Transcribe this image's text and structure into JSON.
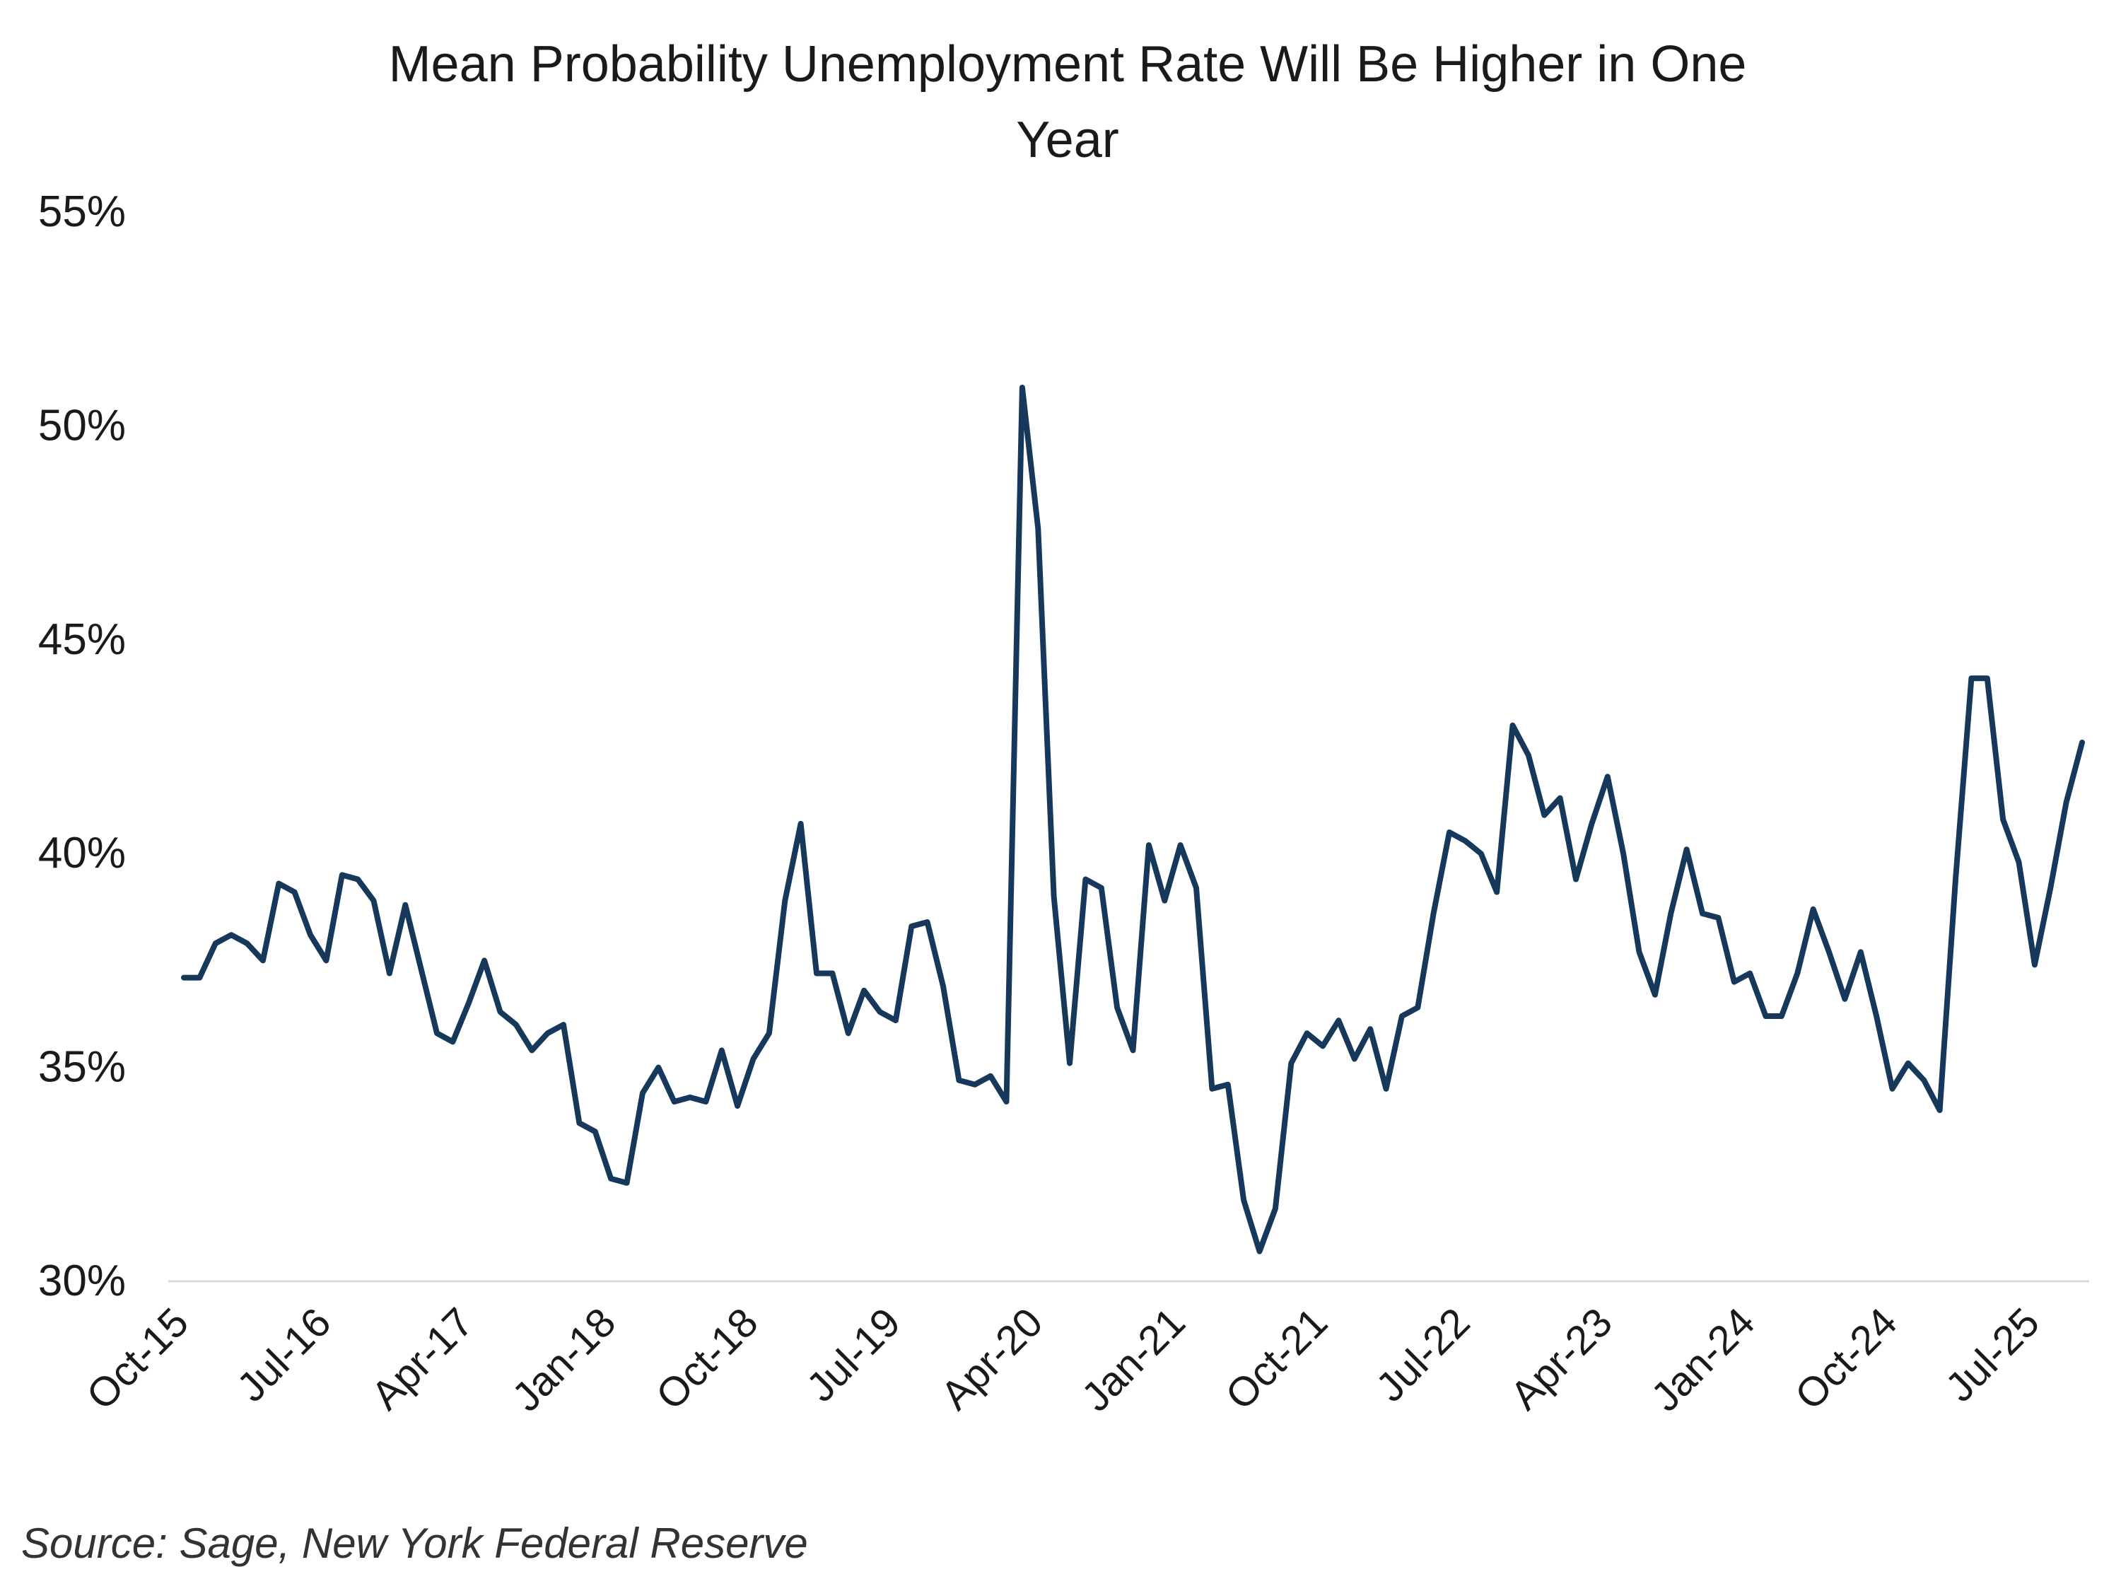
{
  "chart_data": {
    "type": "line",
    "title_line1": "Mean Probability Unemployment Rate Will Be Higher in One",
    "title_line2": "Year",
    "xlabel": "",
    "ylabel": "",
    "ylim": [
      30,
      55
    ],
    "y_ticks": [
      {
        "value": 55,
        "label": "55%"
      },
      {
        "value": 50,
        "label": "50%"
      },
      {
        "value": 45,
        "label": "45%"
      },
      {
        "value": 40,
        "label": "40%"
      },
      {
        "value": 35,
        "label": "35%"
      },
      {
        "value": 30,
        "label": "30%"
      }
    ],
    "x_ticks": [
      {
        "index": 0,
        "label": "Oct-15"
      },
      {
        "index": 9,
        "label": "Jul-16"
      },
      {
        "index": 18,
        "label": "Apr-17"
      },
      {
        "index": 27,
        "label": "Jan-18"
      },
      {
        "index": 36,
        "label": "Oct-18"
      },
      {
        "index": 45,
        "label": "Jul-19"
      },
      {
        "index": 54,
        "label": "Apr-20"
      },
      {
        "index": 63,
        "label": "Jan-21"
      },
      {
        "index": 72,
        "label": "Oct-21"
      },
      {
        "index": 81,
        "label": "Jul-22"
      },
      {
        "index": 90,
        "label": "Apr-23"
      },
      {
        "index": 99,
        "label": "Jan-24"
      },
      {
        "index": 108,
        "label": "Oct-24"
      },
      {
        "index": 117,
        "label": "Jul-25"
      }
    ],
    "series": [
      {
        "name": "Mean Probability",
        "color": "#16385a",
        "start": "Oct-15",
        "values": [
          37.1,
          37.1,
          37.9,
          38.1,
          37.9,
          37.5,
          39.3,
          39.1,
          38.1,
          37.5,
          39.5,
          39.4,
          38.9,
          37.2,
          38.8,
          37.3,
          35.8,
          35.6,
          36.5,
          37.5,
          36.3,
          36.0,
          35.4,
          35.8,
          36.0,
          33.7,
          33.5,
          32.4,
          32.3,
          34.4,
          35.0,
          34.2,
          34.3,
          34.2,
          35.4,
          34.1,
          35.2,
          35.8,
          38.9,
          40.7,
          37.2,
          37.2,
          35.8,
          36.8,
          36.3,
          36.1,
          38.3,
          38.4,
          36.9,
          34.7,
          34.6,
          34.8,
          34.2,
          50.9,
          47.6,
          39.0,
          35.1,
          39.4,
          39.2,
          36.4,
          35.4,
          40.2,
          38.9,
          40.2,
          39.2,
          34.5,
          34.6,
          31.9,
          30.7,
          31.7,
          35.1,
          35.8,
          35.5,
          36.1,
          35.2,
          35.9,
          34.5,
          36.2,
          36.4,
          38.6,
          40.5,
          40.3,
          40.0,
          39.1,
          43.0,
          42.3,
          40.9,
          41.3,
          39.4,
          40.7,
          41.8,
          40.0,
          37.7,
          36.7,
          38.6,
          40.1,
          38.6,
          38.5,
          37.0,
          37.2,
          36.2,
          36.2,
          37.2,
          38.7,
          37.7,
          36.6,
          37.7,
          36.2,
          34.5,
          35.1,
          34.7,
          34.0,
          39.4,
          44.1,
          44.1,
          40.8,
          39.8,
          37.4,
          39.2,
          41.2,
          42.6
        ]
      }
    ]
  },
  "source_text": "Source: Sage, New York Federal Reserve"
}
